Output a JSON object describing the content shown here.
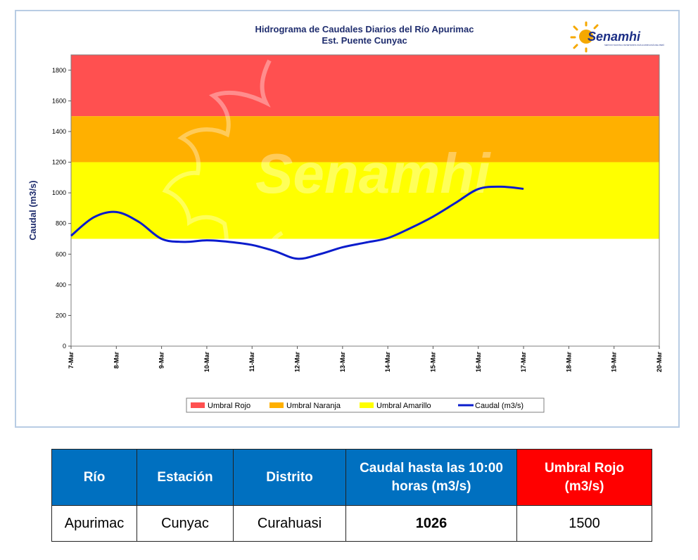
{
  "chart_data": {
    "type": "line",
    "title": "Hidrograma de Caudales Diarios del Río Apurimac",
    "subtitle": "Est. Puente Cunyac",
    "ylabel": "Caudal (m3/s)",
    "xlabel": "",
    "ylim": [
      0,
      1900
    ],
    "y_ticks": [
      0,
      200,
      400,
      600,
      800,
      1000,
      1200,
      1400,
      1600,
      1800
    ],
    "categories": [
      "7-Mar",
      "8-Mar",
      "9-Mar",
      "10-Mar",
      "11-Mar",
      "12-Mar",
      "13-Mar",
      "14-Mar",
      "15-Mar",
      "16-Mar",
      "17-Mar",
      "18-Mar",
      "19-Mar",
      "20-Mar"
    ],
    "bands": [
      {
        "name": "Umbral Rojo",
        "from": 1500,
        "to": 1900,
        "color": "#ff5050"
      },
      {
        "name": "Umbral Naranja",
        "from": 1200,
        "to": 1500,
        "color": "#ffb000"
      },
      {
        "name": "Umbral Amarillo",
        "from": 700,
        "to": 1200,
        "color": "#ffff00"
      }
    ],
    "series": [
      {
        "name": "Caudal (m3/s)",
        "color": "#0a1ccc",
        "points": [
          [
            0,
            720
          ],
          [
            0.5,
            840
          ],
          [
            1,
            875
          ],
          [
            1.5,
            810
          ],
          [
            2,
            700
          ],
          [
            2.5,
            680
          ],
          [
            3,
            690
          ],
          [
            3.5,
            680
          ],
          [
            4,
            660
          ],
          [
            4.5,
            620
          ],
          [
            5,
            570
          ],
          [
            5.5,
            600
          ],
          [
            6,
            645
          ],
          [
            6.5,
            675
          ],
          [
            7,
            705
          ],
          [
            7.5,
            770
          ],
          [
            8,
            845
          ],
          [
            8.5,
            935
          ],
          [
            9,
            1025
          ],
          [
            9.5,
            1040
          ],
          [
            10,
            1026
          ]
        ]
      }
    ],
    "legend": [
      "Umbral Rojo",
      "Umbral Naranja",
      "Umbral Amarillo",
      "Caudal (m3/s)"
    ],
    "legend_position": "bottom",
    "watermark": "Senamhi",
    "grid": false
  },
  "logo": {
    "text": "Senamhi",
    "subtext": "SERVICIO NACIONAL DE METEOROLOGÍA E HIDROLOGÍA DEL PERÚ"
  },
  "table": {
    "headers": [
      "Río",
      "Estación",
      "Distrito",
      "Caudal hasta las 10:00 horas (m3/s)",
      "Umbral Rojo (m3/s)"
    ],
    "row": [
      "Apurimac",
      "Cunyac",
      "Curahuasi",
      "1026",
      "1500"
    ]
  }
}
